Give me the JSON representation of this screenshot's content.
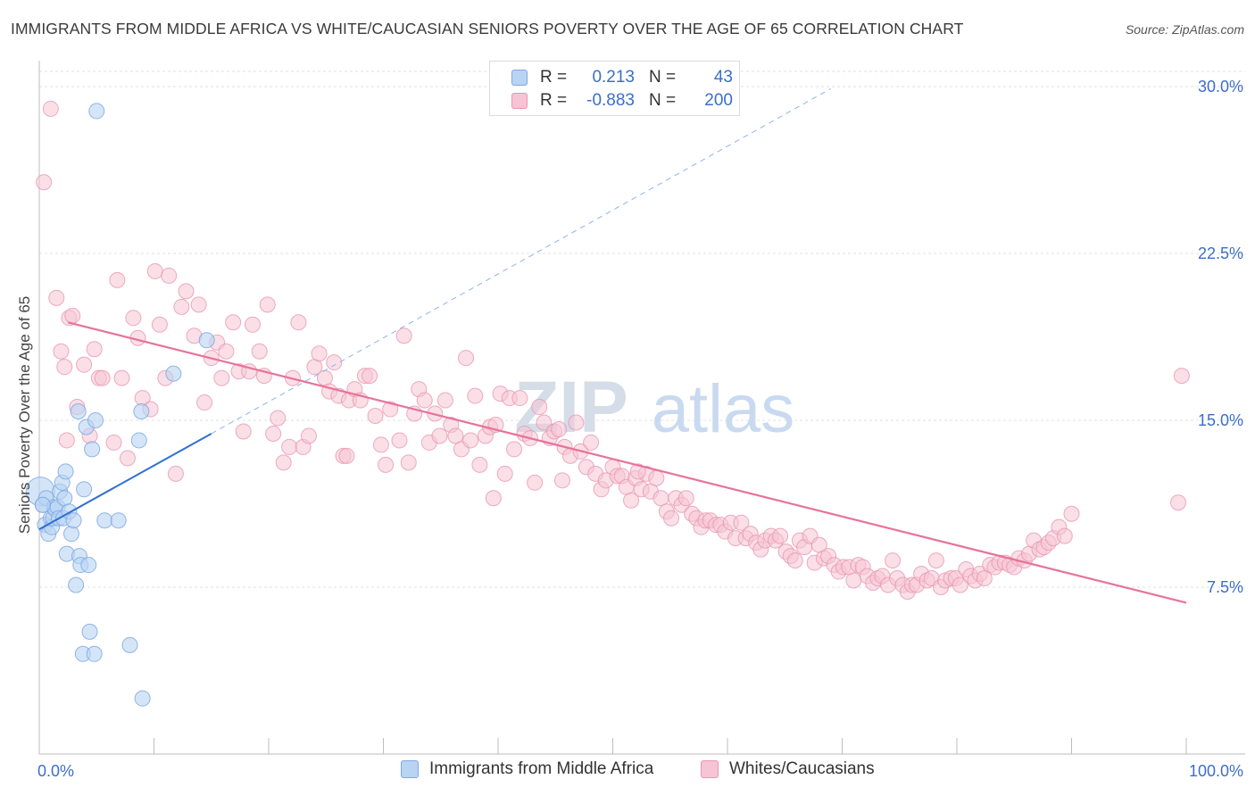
{
  "title": "IMMIGRANTS FROM MIDDLE AFRICA VS WHITE/CAUCASIAN SENIORS POVERTY OVER THE AGE OF 65 CORRELATION CHART",
  "source": "Source: ZipAtlas.com",
  "watermark": {
    "zip": "ZIP",
    "atlas": "atlas"
  },
  "legend_top": [
    {
      "r_label": "R =",
      "r_value": "0.213",
      "n_label": "N =",
      "n_value": "43"
    },
    {
      "r_label": "R =",
      "r_value": "-0.883",
      "n_label": "N =",
      "n_value": "200"
    }
  ],
  "legend_bottom": [
    "Immigrants from Middle Africa",
    "Whites/Caucasians"
  ],
  "colors": {
    "blue": "#7ea9e2",
    "blue_fill": "#b9d3f3",
    "blue_line": "#2f6fd0",
    "pink": "#e996b2",
    "pink_fill": "#f6c4d4",
    "pink_line": "#e8729a",
    "tick_label": "#3b6fc9",
    "grid": "#e0e0e0"
  },
  "chart_data": {
    "type": "scatter",
    "title": "IMMIGRANTS FROM MIDDLE AFRICA VS WHITE/CAUCASIAN SENIORS POVERTY OVER THE AGE OF 65 CORRELATION CHART",
    "xlabel": "",
    "ylabel": "Seniors Poverty Over the Age of 65",
    "xlim": [
      0,
      100
    ],
    "ylim": [
      0,
      31.5
    ],
    "x_tick_labels": [
      "0.0%",
      "100.0%"
    ],
    "y_ticks": [
      7.5,
      15.0,
      22.5,
      30.0
    ],
    "y_tick_labels": [
      "7.5%",
      "15.0%",
      "22.5%",
      "30.0%"
    ],
    "grid": true,
    "series": [
      {
        "name": "Immigrants from Middle Africa",
        "r": 0.213,
        "n": 43,
        "trend": {
          "x": [
            0,
            15
          ],
          "y": [
            10.1,
            14.4
          ]
        },
        "trend_extended": {
          "x": [
            15,
            69
          ],
          "y": [
            14.4,
            29.9
          ]
        },
        "points": [
          [
            0.1,
            11.8
          ],
          [
            0.3,
            11.2
          ],
          [
            0.5,
            10.3
          ],
          [
            0.6,
            11.5
          ],
          [
            0.8,
            9.9
          ],
          [
            1.0,
            10.6
          ],
          [
            1.1,
            10.2
          ],
          [
            1.2,
            10.6
          ],
          [
            1.3,
            11.1
          ],
          [
            1.4,
            11.0
          ],
          [
            1.6,
            11.1
          ],
          [
            1.7,
            10.6
          ],
          [
            1.8,
            11.8
          ],
          [
            2.0,
            12.2
          ],
          [
            2.1,
            10.6
          ],
          [
            2.2,
            11.5
          ],
          [
            2.3,
            12.7
          ],
          [
            2.4,
            9.0
          ],
          [
            2.6,
            10.9
          ],
          [
            2.8,
            9.9
          ],
          [
            3.0,
            10.5
          ],
          [
            3.2,
            7.6
          ],
          [
            3.4,
            15.4
          ],
          [
            3.5,
            8.9
          ],
          [
            3.6,
            8.5
          ],
          [
            3.8,
            4.5
          ],
          [
            3.9,
            11.9
          ],
          [
            4.1,
            14.7
          ],
          [
            4.3,
            8.5
          ],
          [
            4.4,
            5.5
          ],
          [
            4.6,
            13.7
          ],
          [
            4.8,
            4.5
          ],
          [
            4.9,
            15.0
          ],
          [
            5.0,
            28.9
          ],
          [
            5.7,
            10.5
          ],
          [
            6.9,
            10.5
          ],
          [
            7.9,
            4.9
          ],
          [
            8.7,
            14.1
          ],
          [
            8.9,
            15.4
          ],
          [
            9.0,
            2.5
          ],
          [
            11.7,
            17.1
          ],
          [
            14.6,
            18.6
          ],
          [
            0.3,
            11.2
          ]
        ]
      },
      {
        "name": "Whites/Caucasians",
        "r": -0.883,
        "n": 200,
        "trend": {
          "x": [
            2.5,
            100
          ],
          "y": [
            19.4,
            6.8
          ]
        },
        "points": [
          [
            0.4,
            25.7
          ],
          [
            1.0,
            29.0
          ],
          [
            1.5,
            20.5
          ],
          [
            1.9,
            18.1
          ],
          [
            2.2,
            17.4
          ],
          [
            2.4,
            14.1
          ],
          [
            2.6,
            19.6
          ],
          [
            2.9,
            19.7
          ],
          [
            3.3,
            15.6
          ],
          [
            3.9,
            17.5
          ],
          [
            4.4,
            14.3
          ],
          [
            4.8,
            18.2
          ],
          [
            5.2,
            16.9
          ],
          [
            5.5,
            16.9
          ],
          [
            6.5,
            14.0
          ],
          [
            6.8,
            21.3
          ],
          [
            7.2,
            16.9
          ],
          [
            7.7,
            13.3
          ],
          [
            8.2,
            19.6
          ],
          [
            8.6,
            18.7
          ],
          [
            9.0,
            16.0
          ],
          [
            9.7,
            15.5
          ],
          [
            10.1,
            21.7
          ],
          [
            10.5,
            19.3
          ],
          [
            11.0,
            16.9
          ],
          [
            11.3,
            21.5
          ],
          [
            11.9,
            12.6
          ],
          [
            12.4,
            20.1
          ],
          [
            12.8,
            20.8
          ],
          [
            13.5,
            18.8
          ],
          [
            13.9,
            20.2
          ],
          [
            14.4,
            15.8
          ],
          [
            15.0,
            17.8
          ],
          [
            15.5,
            18.5
          ],
          [
            15.9,
            16.9
          ],
          [
            16.3,
            18.1
          ],
          [
            16.9,
            19.4
          ],
          [
            17.4,
            17.2
          ],
          [
            17.8,
            14.5
          ],
          [
            18.3,
            17.2
          ],
          [
            18.6,
            19.3
          ],
          [
            19.2,
            18.1
          ],
          [
            19.6,
            17.0
          ],
          [
            19.9,
            20.2
          ],
          [
            20.4,
            14.4
          ],
          [
            20.8,
            15.1
          ],
          [
            21.3,
            13.1
          ],
          [
            21.8,
            13.8
          ],
          [
            22.1,
            16.9
          ],
          [
            22.6,
            19.4
          ],
          [
            23.0,
            13.8
          ],
          [
            23.5,
            14.3
          ],
          [
            24.0,
            17.4
          ],
          [
            24.4,
            18.0
          ],
          [
            24.9,
            16.9
          ],
          [
            25.3,
            16.3
          ],
          [
            25.7,
            17.6
          ],
          [
            26.1,
            16.1
          ],
          [
            26.5,
            13.4
          ],
          [
            27.0,
            15.9
          ],
          [
            27.5,
            16.4
          ],
          [
            28.0,
            15.9
          ],
          [
            28.4,
            17.0
          ],
          [
            28.8,
            17.0
          ],
          [
            29.3,
            15.2
          ],
          [
            29.8,
            13.9
          ],
          [
            30.2,
            13.0
          ],
          [
            30.6,
            15.5
          ],
          [
            31.4,
            14.1
          ],
          [
            31.8,
            18.8
          ],
          [
            32.2,
            13.1
          ],
          [
            32.7,
            15.3
          ],
          [
            33.1,
            16.4
          ],
          [
            33.6,
            15.9
          ],
          [
            34.0,
            14.0
          ],
          [
            34.5,
            15.3
          ],
          [
            34.9,
            14.3
          ],
          [
            35.4,
            15.9
          ],
          [
            35.9,
            14.8
          ],
          [
            36.3,
            14.3
          ],
          [
            36.8,
            13.7
          ],
          [
            37.2,
            17.8
          ],
          [
            37.6,
            14.1
          ],
          [
            38.0,
            16.1
          ],
          [
            38.4,
            13.0
          ],
          [
            38.9,
            14.3
          ],
          [
            39.3,
            14.7
          ],
          [
            39.8,
            14.8
          ],
          [
            40.2,
            16.2
          ],
          [
            40.6,
            12.6
          ],
          [
            41.0,
            16.0
          ],
          [
            41.4,
            13.7
          ],
          [
            41.9,
            16.0
          ],
          [
            42.3,
            14.4
          ],
          [
            42.8,
            14.2
          ],
          [
            43.2,
            12.2
          ],
          [
            43.6,
            15.6
          ],
          [
            44.0,
            14.9
          ],
          [
            44.5,
            14.2
          ],
          [
            44.9,
            14.5
          ],
          [
            45.3,
            14.6
          ],
          [
            45.8,
            13.8
          ],
          [
            46.3,
            13.4
          ],
          [
            46.8,
            14.9
          ],
          [
            47.2,
            13.6
          ],
          [
            47.7,
            12.9
          ],
          [
            48.1,
            14.0
          ],
          [
            48.5,
            12.6
          ],
          [
            49.0,
            11.9
          ],
          [
            49.4,
            12.3
          ],
          [
            50.0,
            12.9
          ],
          [
            50.4,
            12.5
          ],
          [
            50.8,
            12.5
          ],
          [
            51.2,
            12.0
          ],
          [
            51.6,
            11.4
          ],
          [
            52.0,
            12.4
          ],
          [
            52.5,
            11.9
          ],
          [
            52.9,
            12.6
          ],
          [
            53.3,
            11.8
          ],
          [
            53.8,
            12.4
          ],
          [
            54.2,
            11.5
          ],
          [
            54.7,
            10.9
          ],
          [
            55.1,
            10.6
          ],
          [
            55.5,
            11.5
          ],
          [
            56.0,
            11.2
          ],
          [
            56.4,
            11.5
          ],
          [
            56.9,
            10.8
          ],
          [
            57.3,
            10.6
          ],
          [
            57.7,
            10.2
          ],
          [
            58.1,
            10.5
          ],
          [
            58.5,
            10.5
          ],
          [
            59.0,
            10.3
          ],
          [
            59.4,
            10.3
          ],
          [
            59.8,
            10.0
          ],
          [
            60.3,
            10.4
          ],
          [
            60.7,
            9.7
          ],
          [
            61.2,
            10.4
          ],
          [
            61.6,
            9.7
          ],
          [
            62.0,
            9.9
          ],
          [
            62.5,
            9.5
          ],
          [
            62.9,
            9.2
          ],
          [
            63.3,
            9.6
          ],
          [
            63.8,
            9.8
          ],
          [
            64.2,
            9.6
          ],
          [
            64.6,
            9.8
          ],
          [
            65.1,
            9.1
          ],
          [
            65.5,
            8.9
          ],
          [
            65.9,
            8.7
          ],
          [
            66.3,
            9.6
          ],
          [
            66.7,
            9.3
          ],
          [
            67.2,
            9.8
          ],
          [
            67.6,
            8.6
          ],
          [
            68.0,
            9.4
          ],
          [
            68.4,
            8.8
          ],
          [
            68.8,
            8.9
          ],
          [
            69.3,
            8.5
          ],
          [
            69.7,
            8.2
          ],
          [
            70.1,
            8.4
          ],
          [
            70.6,
            8.4
          ],
          [
            71.0,
            7.8
          ],
          [
            71.4,
            8.5
          ],
          [
            71.8,
            8.4
          ],
          [
            72.2,
            8.0
          ],
          [
            72.7,
            7.7
          ],
          [
            73.1,
            7.9
          ],
          [
            73.5,
            8.0
          ],
          [
            74.0,
            7.6
          ],
          [
            74.4,
            8.7
          ],
          [
            74.8,
            7.9
          ],
          [
            75.3,
            7.6
          ],
          [
            75.7,
            7.3
          ],
          [
            76.1,
            7.6
          ],
          [
            76.5,
            7.6
          ],
          [
            76.9,
            8.1
          ],
          [
            77.4,
            7.8
          ],
          [
            77.8,
            7.9
          ],
          [
            78.2,
            8.7
          ],
          [
            78.6,
            7.5
          ],
          [
            79.0,
            7.8
          ],
          [
            79.5,
            7.9
          ],
          [
            79.9,
            7.9
          ],
          [
            80.3,
            7.6
          ],
          [
            80.8,
            8.3
          ],
          [
            81.2,
            8.0
          ],
          [
            81.6,
            7.8
          ],
          [
            82.0,
            8.1
          ],
          [
            82.4,
            7.9
          ],
          [
            82.9,
            8.5
          ],
          [
            83.3,
            8.4
          ],
          [
            83.7,
            8.6
          ],
          [
            84.2,
            8.6
          ],
          [
            84.6,
            8.5
          ],
          [
            85.0,
            8.4
          ],
          [
            85.4,
            8.8
          ],
          [
            85.9,
            8.7
          ],
          [
            86.3,
            9.0
          ],
          [
            86.7,
            9.6
          ],
          [
            87.2,
            9.2
          ],
          [
            87.6,
            9.3
          ],
          [
            88.0,
            9.5
          ],
          [
            88.4,
            9.7
          ],
          [
            88.9,
            10.2
          ],
          [
            99.6,
            17.0
          ],
          [
            99.3,
            11.3
          ],
          [
            89.4,
            9.8
          ],
          [
            90.0,
            10.8
          ],
          [
            39.6,
            11.5
          ],
          [
            45.6,
            12.3
          ],
          [
            52.2,
            12.7
          ],
          [
            26.8,
            13.4
          ]
        ]
      }
    ]
  }
}
